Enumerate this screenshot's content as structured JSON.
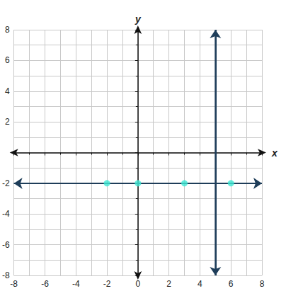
{
  "chart_data": {
    "type": "line",
    "x_label": "x",
    "y_label": "y",
    "xlim": [
      -8,
      8
    ],
    "ylim": [
      -8,
      8
    ],
    "xticks": [
      -8,
      -6,
      -4,
      -2,
      0,
      2,
      4,
      6,
      8
    ],
    "yticks": [
      -8,
      -6,
      -4,
      -2,
      2,
      4,
      6,
      8
    ],
    "grid": true,
    "series": [
      {
        "type": "line",
        "color": "#1e3d59",
        "marker": "arrow",
        "x": [
          -8,
          8
        ],
        "values": [
          -2,
          -2
        ]
      },
      {
        "type": "line",
        "color": "#1e3d59",
        "marker": "arrow",
        "x": [
          5,
          5
        ],
        "values": [
          -8,
          8
        ]
      },
      {
        "type": "scatter",
        "color": "#3ee8d4",
        "marker": "circle",
        "x": [
          -2,
          0,
          3,
          6
        ],
        "values": [
          -2,
          -2,
          -2,
          -2
        ]
      }
    ]
  }
}
